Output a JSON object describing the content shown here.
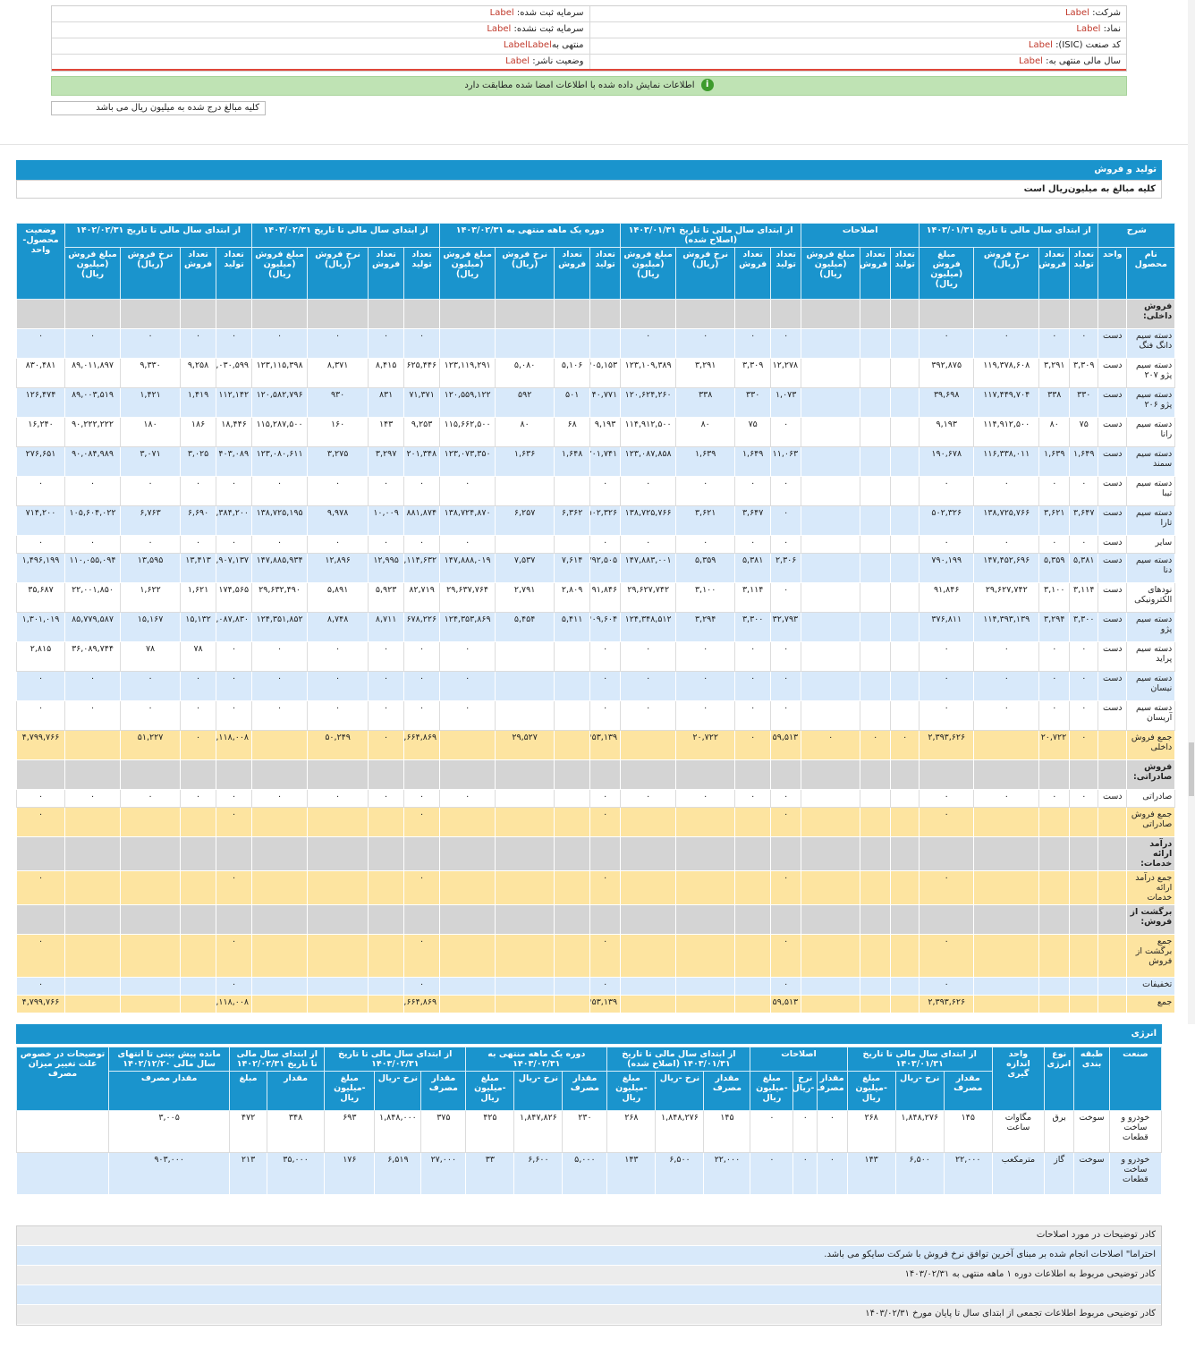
{
  "company_info": {
    "company_label": "شرکت:",
    "symbol_label": "نماد:",
    "isic_label": "کد صنعت (ISIC):",
    "fiscal_year_label": "سال مالی منتهی به:",
    "registered_capital_label": "سرمایه ثبت شده:",
    "unregistered_capital_label": "سرمایه ثبت نشده:",
    "period_label": "منتهی به",
    "publisher_status_label": "وضعیت ناشر:",
    "placeholder_value": "Label",
    "period_value": "LabelLabel"
  },
  "signed_notice": "اطلاعات نمایش داده شده با اطلاعات امضا شده مطابقت دارد",
  "amounts_note": "کلیه مبالغ درج شده به میلیون ریال می باشد",
  "section1": {
    "title": "تولید و فروش",
    "unit_note": "کلیه مبالغ به میلیون‌ریال است"
  },
  "main_headers": {
    "description": "شرح",
    "g1": "از ابتدای سال مالی تا تاریخ ۱۴۰۳/۰۱/۳۱",
    "g2": "اصلاحات",
    "g3": "از ابتدای سال مالی تا تاریخ ۱۴۰۳/۰۱/۳۱ (اصلاح شده)",
    "g4": "دوره یک ماهه منتهی به ۱۴۰۳/۰۲/۳۱",
    "g5": "از ابتدای سال مالی تا تاریخ ۱۴۰۳/۰۲/۳۱",
    "g6": "از ابتدای سال مالی تا تاریخ ۱۴۰۲/۰۲/۳۱",
    "status": "وضعیت محصول-واحد",
    "product": "نام محصول",
    "unit": "واحد",
    "prod_qty": "تعداد تولید",
    "sale_qty": "تعداد فروش",
    "rate": "نرخ فروش (ریال)",
    "amount": "مبلغ فروش (میلیون ریال)"
  },
  "main_rows": [
    {
      "t": "g",
      "name": "فروش داخلی:",
      "v": [
        "",
        "",
        "",
        "",
        "",
        "",
        "",
        "",
        "",
        "",
        "",
        "",
        "",
        "",
        "",
        "",
        "",
        "",
        "",
        "",
        "",
        "",
        "",
        "",
        ""
      ]
    },
    {
      "t": "b",
      "name": "دسته سیم دانگ فنگ",
      "unit": "دست",
      "v": [
        "۰",
        "۰",
        "۰",
        "۰",
        "",
        "",
        "",
        "۰",
        "۰",
        "۰",
        "۰",
        "",
        "",
        "",
        "",
        "۰",
        "۰",
        "۰",
        "۰",
        "۰",
        "۰",
        "۰",
        "۰",
        "۰",
        "تولید"
      ]
    },
    {
      "t": "w",
      "name": "دسته سیم پژو ۲۰۷",
      "unit": "دست",
      "v": [
        "۳,۳۰۹",
        "۳,۲۹۱",
        "۱۱۹,۳۷۸,۶۰۸",
        "۳۹۲,۸۷۵",
        "",
        "",
        "",
        "۱۲,۲۷۸",
        "۳,۳۰۹",
        "۳,۲۹۱",
        "۱۲۳,۱۰۹,۳۸۹",
        "۴۰۵,۱۵۳",
        "۵,۱۰۶",
        "۵,۰۸۰",
        "۱۲۳,۱۱۹,۲۹۱",
        "۶۲۵,۴۴۶",
        "۸,۴۱۵",
        "۸,۳۷۱",
        "۱۲۳,۱۱۵,۳۹۸",
        "۱,۰۳۰,۵۹۹",
        "۹,۲۵۸",
        "۹,۳۳۰",
        "۸۹,۰۱۱,۸۹۷",
        "۸۳۰,۴۸۱",
        "تولید"
      ]
    },
    {
      "t": "b",
      "name": "دسته سیم پژو ۲۰۶",
      "unit": "دست",
      "v": [
        "۳۳۰",
        "۳۳۸",
        "۱۱۷,۴۴۹,۷۰۴",
        "۳۹,۶۹۸",
        "",
        "",
        "",
        "۱,۰۷۳",
        "۳۳۰",
        "۳۳۸",
        "۱۲۰,۶۲۴,۲۶۰",
        "۴۰,۷۷۱",
        "۵۰۱",
        "۵۹۲",
        "۱۲۰,۵۵۹,۱۲۲",
        "۷۱,۳۷۱",
        "۸۳۱",
        "۹۳۰",
        "۱۲۰,۵۸۲,۷۹۶",
        "۱۱۲,۱۴۲",
        "۱,۴۱۹",
        "۱,۴۲۱",
        "۸۹,۰۰۳,۵۱۹",
        "۱۲۶,۴۷۴",
        "تولید"
      ]
    },
    {
      "t": "w",
      "name": "دسته سیم رانا",
      "unit": "دست",
      "v": [
        "۷۵",
        "۸۰",
        "۱۱۴,۹۱۲,۵۰۰",
        "۹,۱۹۳",
        "",
        "",
        "",
        "۰",
        "۷۵",
        "۸۰",
        "۱۱۴,۹۱۲,۵۰۰",
        "۹,۱۹۳",
        "۶۸",
        "۸۰",
        "۱۱۵,۶۶۲,۵۰۰",
        "۹,۲۵۳",
        "۱۴۳",
        "۱۶۰",
        "۱۱۵,۲۸۷,۵۰۰",
        "۱۸,۴۴۶",
        "۱۸۶",
        "۱۸۰",
        "۹۰,۲۲۲,۲۲۲",
        "۱۶,۲۴۰",
        "تولید"
      ]
    },
    {
      "t": "b",
      "name": "دسته سیم سمند",
      "unit": "دست",
      "v": [
        "۱,۶۴۹",
        "۱,۶۳۹",
        "۱۱۶,۳۳۸,۰۱۱",
        "۱۹۰,۶۷۸",
        "",
        "",
        "",
        "۱۱,۰۶۳",
        "۱,۶۴۹",
        "۱,۶۳۹",
        "۱۲۳,۰۸۷,۸۵۸",
        "۲۰۱,۷۴۱",
        "۱,۶۴۸",
        "۱,۶۳۶",
        "۱۲۳,۰۷۳,۳۵۰",
        "۲۰۱,۳۴۸",
        "۳,۲۹۷",
        "۳,۲۷۵",
        "۱۲۳,۰۸۰,۶۱۱",
        "۴۰۳,۰۸۹",
        "۳,۰۲۵",
        "۳,۰۷۱",
        "۹۰,۰۸۴,۹۸۹",
        "۲۷۶,۶۵۱",
        "تولید"
      ]
    },
    {
      "t": "w",
      "name": "دسته سیم تیبا",
      "unit": "دست",
      "v": [
        "۰",
        "۰",
        "۰",
        "۰",
        "",
        "",
        "",
        "۰",
        "۰",
        "۰",
        "۰",
        "۰",
        "",
        "",
        "۰",
        "۰",
        "۰",
        "۰",
        "۰",
        "۰",
        "۰",
        "۰",
        "۰",
        "۰",
        "تولید"
      ]
    },
    {
      "t": "b",
      "name": "دسته سیم تارا",
      "unit": "دست",
      "v": [
        "۳,۶۴۷",
        "۳,۶۲۱",
        "۱۳۸,۷۲۵,۷۶۶",
        "۵۰۲,۳۲۶",
        "",
        "",
        "",
        "۰",
        "۳,۶۴۷",
        "۳,۶۲۱",
        "۱۳۸,۷۲۵,۷۶۶",
        "۵۰۲,۳۲۶",
        "۶,۳۶۲",
        "۶,۲۵۷",
        "۱۳۸,۷۲۴,۸۷۰",
        "۸۸۱,۸۷۴",
        "۱۰,۰۰۹",
        "۹,۹۷۸",
        "۱۳۸,۷۲۵,۱۹۵",
        "۱,۳۸۴,۲۰۰",
        "۶,۶۹۰",
        "۶,۷۶۳",
        "۱۰۵,۶۰۴,۰۲۲",
        "۷۱۴,۲۰۰",
        "تولید"
      ]
    },
    {
      "t": "w",
      "s": 1,
      "name": "سایر",
      "unit": "دست",
      "v": [
        "۰",
        "۰",
        "۰",
        "۰",
        "",
        "",
        "",
        "۰",
        "۰",
        "۰",
        "۰",
        "۰",
        "",
        "",
        "۰",
        "۰",
        "۰",
        "۰",
        "۰",
        "۰",
        "۰",
        "۰",
        "۰",
        "۰",
        "تولید"
      ]
    },
    {
      "t": "b",
      "name": "دسته سیم دنا",
      "unit": "دست",
      "v": [
        "۵,۳۸۱",
        "۵,۳۵۹",
        "۱۴۷,۴۵۲,۶۹۶",
        "۷۹۰,۱۹۹",
        "",
        "",
        "",
        "۲,۳۰۶",
        "۵,۳۸۱",
        "۵,۳۵۹",
        "۱۴۷,۸۸۳,۰۰۱",
        "۷۹۲,۵۰۵",
        "۷,۶۱۴",
        "۷,۵۳۷",
        "۱۴۷,۸۸۸,۰۱۹",
        "۱,۱۱۴,۶۳۲",
        "۱۲,۹۹۵",
        "۱۲,۸۹۶",
        "۱۴۷,۸۸۵,۹۳۴",
        "۱,۹۰۷,۱۳۷",
        "۱۳,۴۱۳",
        "۱۳,۵۹۵",
        "۱۱۰,۰۵۵,۰۹۴",
        "۱,۴۹۶,۱۹۹",
        "تولید"
      ]
    },
    {
      "t": "w",
      "name": "نودهای الکترونیکی",
      "unit": "دست",
      "v": [
        "۳,۱۱۴",
        "۳,۱۰۰",
        "۲۹,۶۲۷,۷۴۲",
        "۹۱,۸۴۶",
        "",
        "",
        "",
        "۰",
        "۳,۱۱۴",
        "۳,۱۰۰",
        "۲۹,۶۲۷,۷۴۲",
        "۹۱,۸۴۶",
        "۲,۸۰۹",
        "۲,۷۹۱",
        "۲۹,۶۳۷,۷۶۴",
        "۸۲,۷۱۹",
        "۵,۹۲۳",
        "۵,۸۹۱",
        "۲۹,۶۳۲,۴۹۰",
        "۱۷۴,۵۶۵",
        "۱,۶۲۱",
        "۱,۶۲۲",
        "۲۲,۰۰۱,۸۵۰",
        "۳۵,۶۸۷",
        "تولید"
      ]
    },
    {
      "t": "b",
      "name": "دسته سیم پژو",
      "unit": "دست",
      "v": [
        "۳,۳۰۰",
        "۳,۲۹۴",
        "۱۱۴,۳۹۳,۱۳۹",
        "۳۷۶,۸۱۱",
        "",
        "",
        "",
        "۳۲,۷۹۳",
        "۳,۳۰۰",
        "۳,۲۹۴",
        "۱۲۴,۳۴۸,۵۱۲",
        "۴۰۹,۶۰۴",
        "۵,۴۱۱",
        "۵,۴۵۴",
        "۱۲۴,۳۵۳,۸۶۹",
        "۶۷۸,۲۲۶",
        "۸,۷۱۱",
        "۸,۷۴۸",
        "۱۲۴,۳۵۱,۸۵۲",
        "۱,۰۸۷,۸۳۰",
        "۱۵,۱۳۲",
        "۱۵,۱۶۷",
        "۸۵,۷۷۹,۵۸۷",
        "۱,۳۰۱,۰۱۹",
        "تولید"
      ]
    },
    {
      "t": "w",
      "name": "دسته سیم پراید",
      "unit": "دست",
      "v": [
        "۰",
        "۰",
        "۰",
        "۰",
        "",
        "",
        "",
        "۰",
        "۰",
        "۰",
        "۰",
        "۰",
        "",
        "",
        "۰",
        "۰",
        "۰",
        "۰",
        "۰",
        "۰",
        "۷۸",
        "۷۸",
        "۳۶,۰۸۹,۷۴۴",
        "۲,۸۱۵",
        "تولید"
      ]
    },
    {
      "t": "b",
      "name": "دسته سیم نیسان",
      "unit": "دست",
      "v": [
        "۰",
        "۰",
        "۰",
        "۰",
        "",
        "",
        "",
        "۰",
        "۰",
        "۰",
        "۰",
        "۰",
        "",
        "",
        "۰",
        "۰",
        "۰",
        "۰",
        "۰",
        "۰",
        "۰",
        "۰",
        "۰",
        "۰",
        "تولید"
      ]
    },
    {
      "t": "w",
      "name": "دسته سیم آریسان",
      "unit": "دست",
      "v": [
        "۰",
        "۰",
        "۰",
        "۰",
        "",
        "",
        "",
        "۰",
        "۰",
        "۰",
        "۰",
        "۰",
        "",
        "",
        "۰",
        "۰",
        "۰",
        "۰",
        "۰",
        "۰",
        "۰",
        "۰",
        "۰",
        "۰",
        "تولید"
      ]
    },
    {
      "t": "y",
      "name": "جمع فروش داخلی",
      "v": [
        "۰",
        "۲۰,۷۲۲",
        "",
        "۲,۳۹۳,۶۲۶",
        "۰",
        "۰",
        "۰",
        "۵۹,۵۱۳",
        "۰",
        "۲۰,۷۲۲",
        "",
        "۲,۴۵۳,۱۳۹",
        "",
        "۲۹,۵۲۷",
        "",
        "۳,۶۶۴,۸۶۹",
        "۰",
        "۵۰,۲۴۹",
        "",
        "۶,۱۱۸,۰۰۸",
        "۰",
        "۵۱,۲۲۷",
        "",
        "۴,۷۹۹,۷۶۶",
        ""
      ]
    },
    {
      "t": "g",
      "name": "فروش صادراتی:",
      "v": [
        "",
        "",
        "",
        "",
        "",
        "",
        "",
        "",
        "",
        "",
        "",
        "",
        "",
        "",
        "",
        "",
        "",
        "",
        "",
        "",
        "",
        "",
        "",
        "",
        ""
      ]
    },
    {
      "t": "w",
      "s": 1,
      "name": "صادراتی",
      "unit": "دست",
      "v": [
        "۰",
        "۰",
        "۰",
        "۰",
        "",
        "",
        "",
        "۰",
        "۰",
        "۰",
        "۰",
        "۰",
        "",
        "",
        "۰",
        "۰",
        "۰",
        "۰",
        "۰",
        "۰",
        "۰",
        "۰",
        "۰",
        "۰",
        "تولید"
      ]
    },
    {
      "t": "y",
      "name": "جمع فروش صادراتی",
      "v": [
        "",
        "",
        "",
        "۰",
        "",
        "",
        "",
        "۰",
        "",
        "",
        "",
        "۰",
        "",
        "",
        "",
        "۰",
        "",
        "",
        "",
        "۰",
        "",
        "",
        "",
        "۰",
        ""
      ]
    },
    {
      "t": "g",
      "name": "درآمد ارائه خدمات:",
      "v": [
        "",
        "",
        "",
        "",
        "",
        "",
        "",
        "",
        "",
        "",
        "",
        "",
        "",
        "",
        "",
        "",
        "",
        "",
        "",
        "",
        "",
        "",
        "",
        "",
        ""
      ]
    },
    {
      "t": "y",
      "name": "جمع درآمد ارائه خدمات",
      "v": [
        "",
        "",
        "",
        "۰",
        "",
        "",
        "",
        "۰",
        "",
        "",
        "",
        "۰",
        "",
        "",
        "",
        "۰",
        "",
        "",
        "",
        "۰",
        "",
        "",
        "",
        "۰",
        ""
      ]
    },
    {
      "t": "g",
      "name": "برگشت از فروش:",
      "v": [
        "",
        "",
        "",
        "",
        "",
        "",
        "",
        "",
        "",
        "",
        "",
        "",
        "",
        "",
        "",
        "",
        "",
        "",
        "",
        "",
        "",
        "",
        "",
        "",
        ""
      ]
    },
    {
      "t": "y",
      "h": 1,
      "name": "جمع برگشت از فروش",
      "v": [
        "",
        "",
        "",
        "۰",
        "",
        "",
        "",
        "۰",
        "",
        "",
        "",
        "۰",
        "",
        "",
        "",
        "۰",
        "",
        "",
        "",
        "۰",
        "",
        "",
        "",
        "۰",
        ""
      ]
    },
    {
      "t": "b",
      "s": 1,
      "name": "تخفیفات",
      "v": [
        "",
        "",
        "",
        "۰",
        "",
        "",
        "",
        "۰",
        "",
        "",
        "",
        "۰",
        "",
        "",
        "",
        "۰",
        "",
        "",
        "",
        "۰",
        "",
        "",
        "",
        "۰",
        ""
      ]
    },
    {
      "t": "y",
      "s": 1,
      "name": "جمع",
      "v": [
        "",
        "",
        "",
        "۲,۳۹۳,۶۲۶",
        "",
        "",
        "",
        "۵۹,۵۱۳",
        "",
        "",
        "",
        "۲,۴۵۳,۱۳۹",
        "",
        "",
        "",
        "۳,۶۶۴,۸۶۹",
        "",
        "",
        "",
        "۶,۱۱۸,۰۰۸",
        "",
        "",
        "",
        "۴,۷۹۹,۷۶۶",
        ""
      ]
    }
  ],
  "section2": {
    "title": "انرژی"
  },
  "energy_headers": {
    "industry": "صنعت",
    "category": "طبقه بندی",
    "energy_type": "نوع انرژی",
    "unit": "واحد اندازه گیری",
    "g1": "از ابتدای سال مالی تا تاریخ ۱۴۰۳/۰۱/۳۱",
    "g2": "اصلاحات",
    "g3": "از ابتدای سال مالی تا تاریخ ۱۴۰۳/۰۱/۳۱ (اصلاح شده)",
    "g4": "دوره یک ماهه منتهی به ۱۴۰۳/۰۲/۳۱",
    "g5": "از ابتدای سال مالی تا تاریخ ۱۴۰۳/۰۲/۳۱",
    "g6": "از ابتدای سال مالی تا تاریخ ۱۴۰۲/۰۲/۳۱",
    "g7": "مانده پیش بینی تا انتهای سال مالی ۱۴۰۲/۱۲/۲۰",
    "notes": "توضیحات در خصوص علت تغییر میزان مصرف",
    "consumption": "مقدار مصرف",
    "rate": "نرخ -ریال",
    "amount": "مبلغ -میلیون ریال",
    "amount_short": "مبلغ",
    "qty": "مقدار"
  },
  "energy_rows": [
    {
      "t": "w",
      "industry": "خودرو و ساخت قطعات",
      "category": "سوخت",
      "type": "برق",
      "unit": "مگاوات ساعت",
      "v": [
        "۱۴۵",
        "۱,۸۴۸,۲۷۶",
        "۲۶۸",
        "۰",
        "۰",
        "۰",
        "۱۴۵",
        "۱,۸۴۸,۲۷۶",
        "۲۶۸",
        "۲۳۰",
        "۱,۸۴۷,۸۲۶",
        "۴۲۵",
        "۳۷۵",
        "۱,۸۴۸,۰۰۰",
        "۶۹۳",
        "۳۴۸",
        "۴۷۲",
        "۳,۰۰۵",
        ""
      ]
    },
    {
      "t": "b",
      "industry": "خودرو و ساخت قطعات",
      "category": "سوخت",
      "type": "گاز",
      "unit": "مترمکعب",
      "v": [
        "۲۲,۰۰۰",
        "۶,۵۰۰",
        "۱۴۳",
        "۰",
        "۰",
        "۰",
        "۲۲,۰۰۰",
        "۶,۵۰۰",
        "۱۴۳",
        "۵,۰۰۰",
        "۶,۶۰۰",
        "۳۳",
        "۲۷,۰۰۰",
        "۶,۵۱۹",
        "۱۷۶",
        "۳۵,۰۰۰",
        "۲۱۳",
        "۹۰۳,۰۰۰",
        ""
      ]
    }
  ],
  "footer": {
    "adjustments_title": "کادر توضیحات در مورد اصلاحات",
    "adjustments_text": "احتراما\" اصلاحات انجام شده بر مبنای آخرین توافق نرخ فروش با شرکت سایکو می باشد.",
    "monthly_title": "کادر توضیحی مربوط به اطلاعات دوره ۱ ماهه منتهی به ۱۴۰۳/۰۲/۳۱",
    "cumulative_title": "کادر توضیحی مربوط اطلاعات تجمعی از ابتدای سال تا پایان مورخ ۱۴۰۳/۰۲/۳۱"
  }
}
